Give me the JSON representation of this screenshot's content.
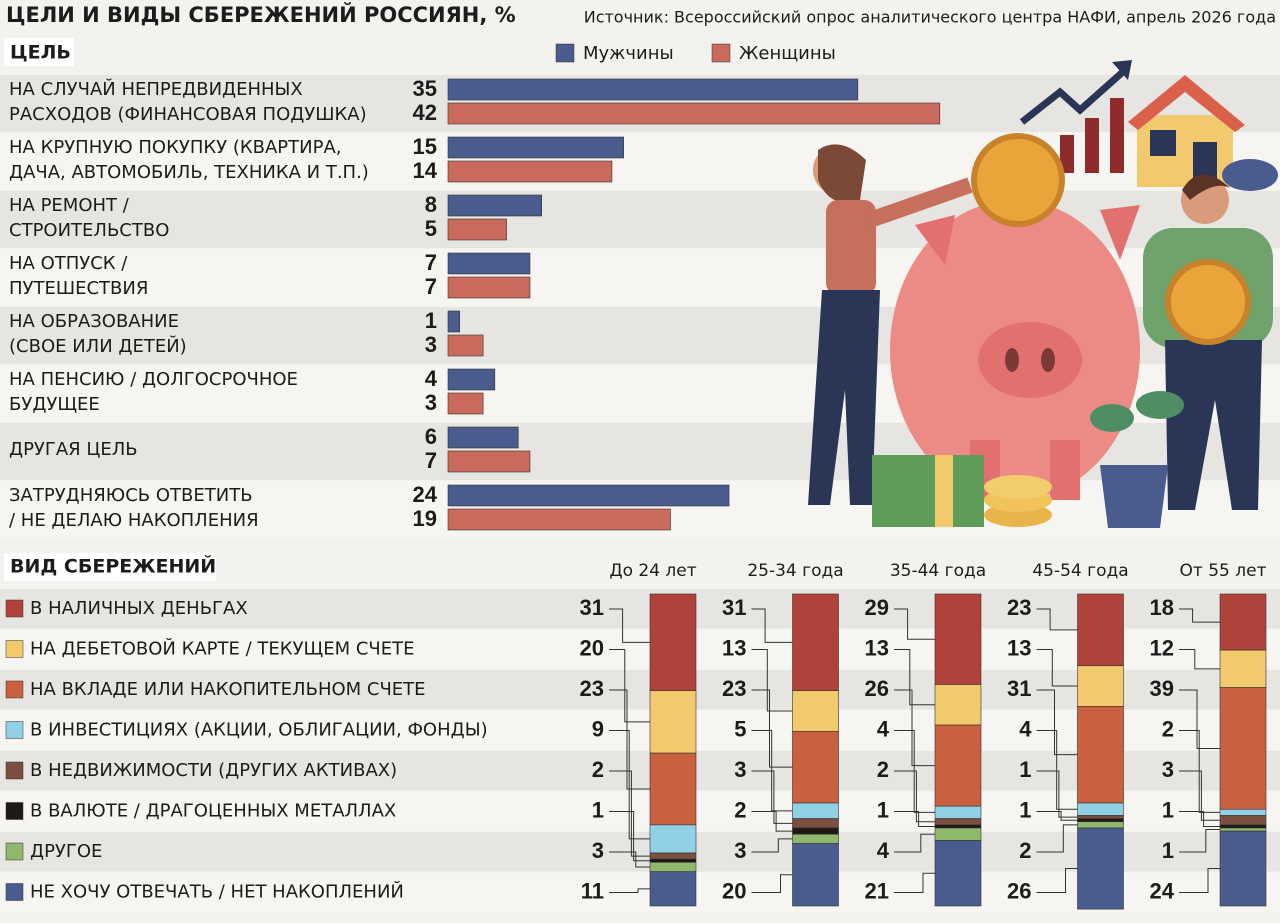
{
  "chart_data": [
    {
      "type": "hbar",
      "title": "ЦЕЛИ И ВИДЫ СБЕРЕЖЕНИЙ РОССИЯН, %",
      "source": "Источник: Всероссийский опрос аналитического центра НАФИ, апрель 2026 года",
      "section": "ЦЕЛЬ",
      "categories": [
        [
          "НА СЛУЧАЙ НЕПРЕДВИДЕННЫХ",
          "РАСХОДОВ (ФИНАНСОВАЯ ПОДУШКА)"
        ],
        [
          "НА КРУПНУЮ ПОКУПКУ (КВАРТИРА,",
          "ДАЧА, АВТОМОБИЛЬ, ТЕХНИКА И Т.П.)"
        ],
        [
          "НА РЕМОНТ /",
          "СТРОИТЕЛЬСТВО"
        ],
        [
          "НА ОТПУСК /",
          "ПУТЕШЕСТВИЯ"
        ],
        [
          "НА ОБРАЗОВАНИЕ",
          "(СВОЕ ИЛИ ДЕТЕЙ)"
        ],
        [
          "НА ПЕНСИЮ / ДОЛГОСРОЧНОЕ",
          "БУДУЩЕЕ"
        ],
        [
          "ДРУГАЯ ЦЕЛЬ"
        ],
        [
          "ЗАТРУДНЯЮСЬ ОТВЕТИТЬ",
          "/ НЕ ДЕЛАЮ НАКОПЛЕНИЯ"
        ]
      ],
      "series": [
        {
          "name": "Мужчины",
          "color": "#4a5b8e",
          "values": [
            35,
            15,
            8,
            7,
            1,
            4,
            6,
            24
          ]
        },
        {
          "name": "Женщины",
          "color": "#c96a5c",
          "values": [
            42,
            14,
            5,
            7,
            3,
            3,
            7,
            19
          ]
        }
      ]
    },
    {
      "type": "stacked",
      "section": "ВИД СБЕРЕЖЕНИЙ",
      "categories": [
        "До 24 лет",
        "25-34 года",
        "35-44 года",
        "45-54 года",
        "От 55 лет"
      ],
      "series": [
        {
          "name": "В НАЛИЧНЫХ ДЕНЬГАХ",
          "color": "#b1423b",
          "values": [
            31,
            31,
            29,
            23,
            18
          ]
        },
        {
          "name": "НА ДЕБЕТОВОЙ КАРТЕ / ТЕКУЩЕМ СЧЕТЕ",
          "color": "#f2c96c",
          "values": [
            20,
            13,
            13,
            13,
            12
          ]
        },
        {
          "name": "НА ВКЛАДЕ ИЛИ НАКОПИТЕЛЬНОМ СЧЕТЕ",
          "color": "#c9613e",
          "values": [
            23,
            23,
            26,
            31,
            39
          ]
        },
        {
          "name": "В ИНВЕСТИЦИЯХ (АКЦИИ, ОБЛИГАЦИИ, ФОНДЫ)",
          "color": "#92d0e6",
          "values": [
            9,
            5,
            4,
            4,
            2
          ]
        },
        {
          "name": "В НЕДВИЖИМОСТИ (ДРУГИХ АКТИВАХ)",
          "color": "#7b4f3f",
          "values": [
            2,
            3,
            2,
            1,
            3
          ]
        },
        {
          "name": "В ВАЛЮТЕ / ДРАГОЦЕННЫХ МЕТАЛЛАХ",
          "color": "#1e1914",
          "values": [
            1,
            2,
            1,
            1,
            1
          ]
        },
        {
          "name": "ДРУГОЕ",
          "color": "#90b86c",
          "values": [
            3,
            3,
            4,
            2,
            1
          ]
        },
        {
          "name": "НЕ ХОЧУ ОТВЕЧАТЬ / НЕТ НАКОПЛЕНИЙ",
          "color": "#4a5b8e",
          "values": [
            11,
            20,
            21,
            26,
            24
          ]
        }
      ]
    }
  ]
}
